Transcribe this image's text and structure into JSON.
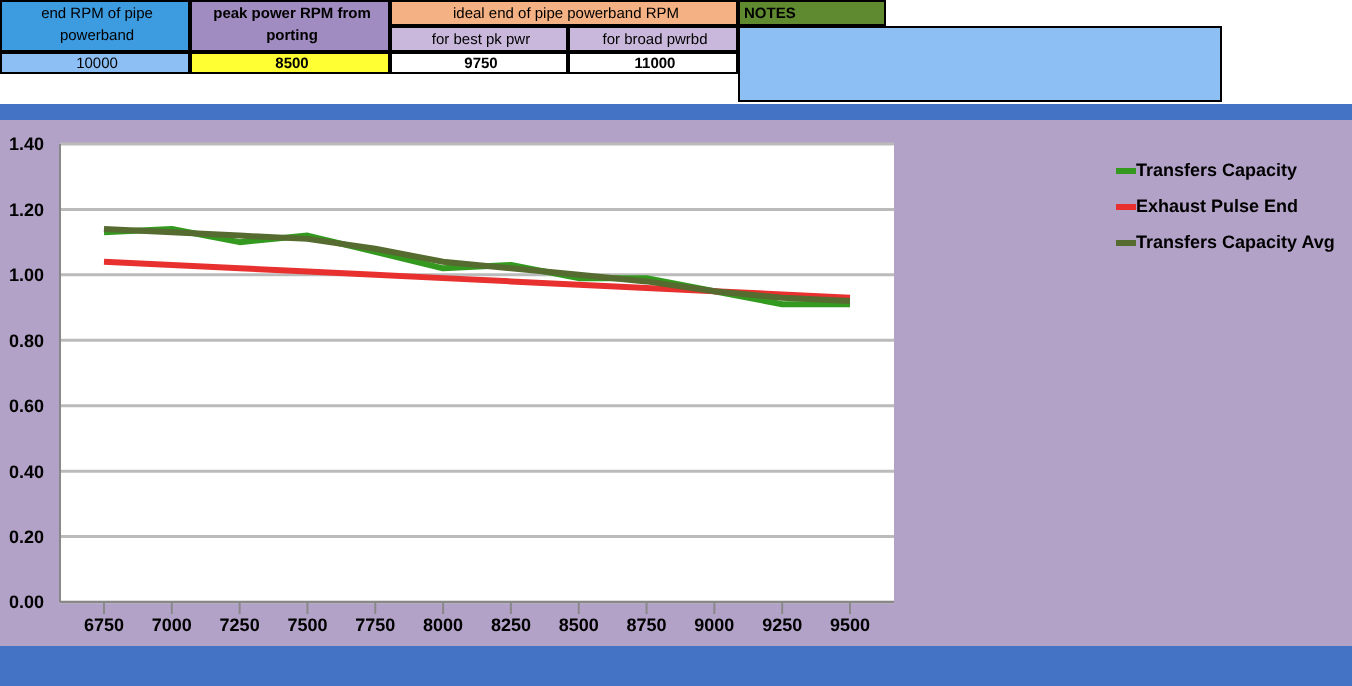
{
  "chart_data": {
    "type": "line",
    "categories": [
      "6750",
      "7000",
      "7250",
      "7500",
      "7750",
      "8000",
      "8250",
      "8500",
      "8750",
      "9000",
      "9250",
      "9500"
    ],
    "series": [
      {
        "name": "Transfers Capacity",
        "color": "#339a1f",
        "values": [
          1.13,
          1.14,
          1.1,
          1.12,
          1.07,
          1.02,
          1.03,
          0.99,
          0.99,
          0.95,
          0.91,
          0.91
        ]
      },
      {
        "name": "Exhaust Pulse End",
        "color": "#e8302f",
        "values": [
          1.04,
          1.03,
          1.02,
          1.01,
          1.0,
          0.99,
          0.98,
          0.97,
          0.96,
          0.95,
          0.94,
          0.93
        ]
      },
      {
        "name": "Transfers Capacity Avg",
        "color": "#566b2f",
        "values": [
          1.14,
          1.13,
          1.12,
          1.11,
          1.08,
          1.04,
          1.02,
          1.0,
          0.98,
          0.95,
          0.93,
          0.92
        ]
      }
    ],
    "ylim": [
      0,
      1.4
    ],
    "yticks": [
      {
        "value": 0,
        "label": "0.00"
      },
      {
        "value": 0.2,
        "label": "0.20"
      },
      {
        "value": 0.4,
        "label": "0.40"
      },
      {
        "value": 0.6,
        "label": "0.60"
      },
      {
        "value": 0.8,
        "label": "0.80"
      },
      {
        "value": 1,
        "label": "1.00"
      },
      {
        "value": 1.2,
        "label": "1.20"
      },
      {
        "value": 1.4,
        "label": "1.40"
      }
    ],
    "grid": "y",
    "legend": "top right",
    "marker": "none",
    "line_style": "solid",
    "annotations": [
      "end RPM of pipe powerband",
      "peak power RPM from porting",
      "ideal end of pipe powerband RPM",
      "NOTES",
      "for best pk pwr",
      "for broad pwrbd",
      "10000",
      "8500",
      "9750",
      "11000"
    ]
  }
}
